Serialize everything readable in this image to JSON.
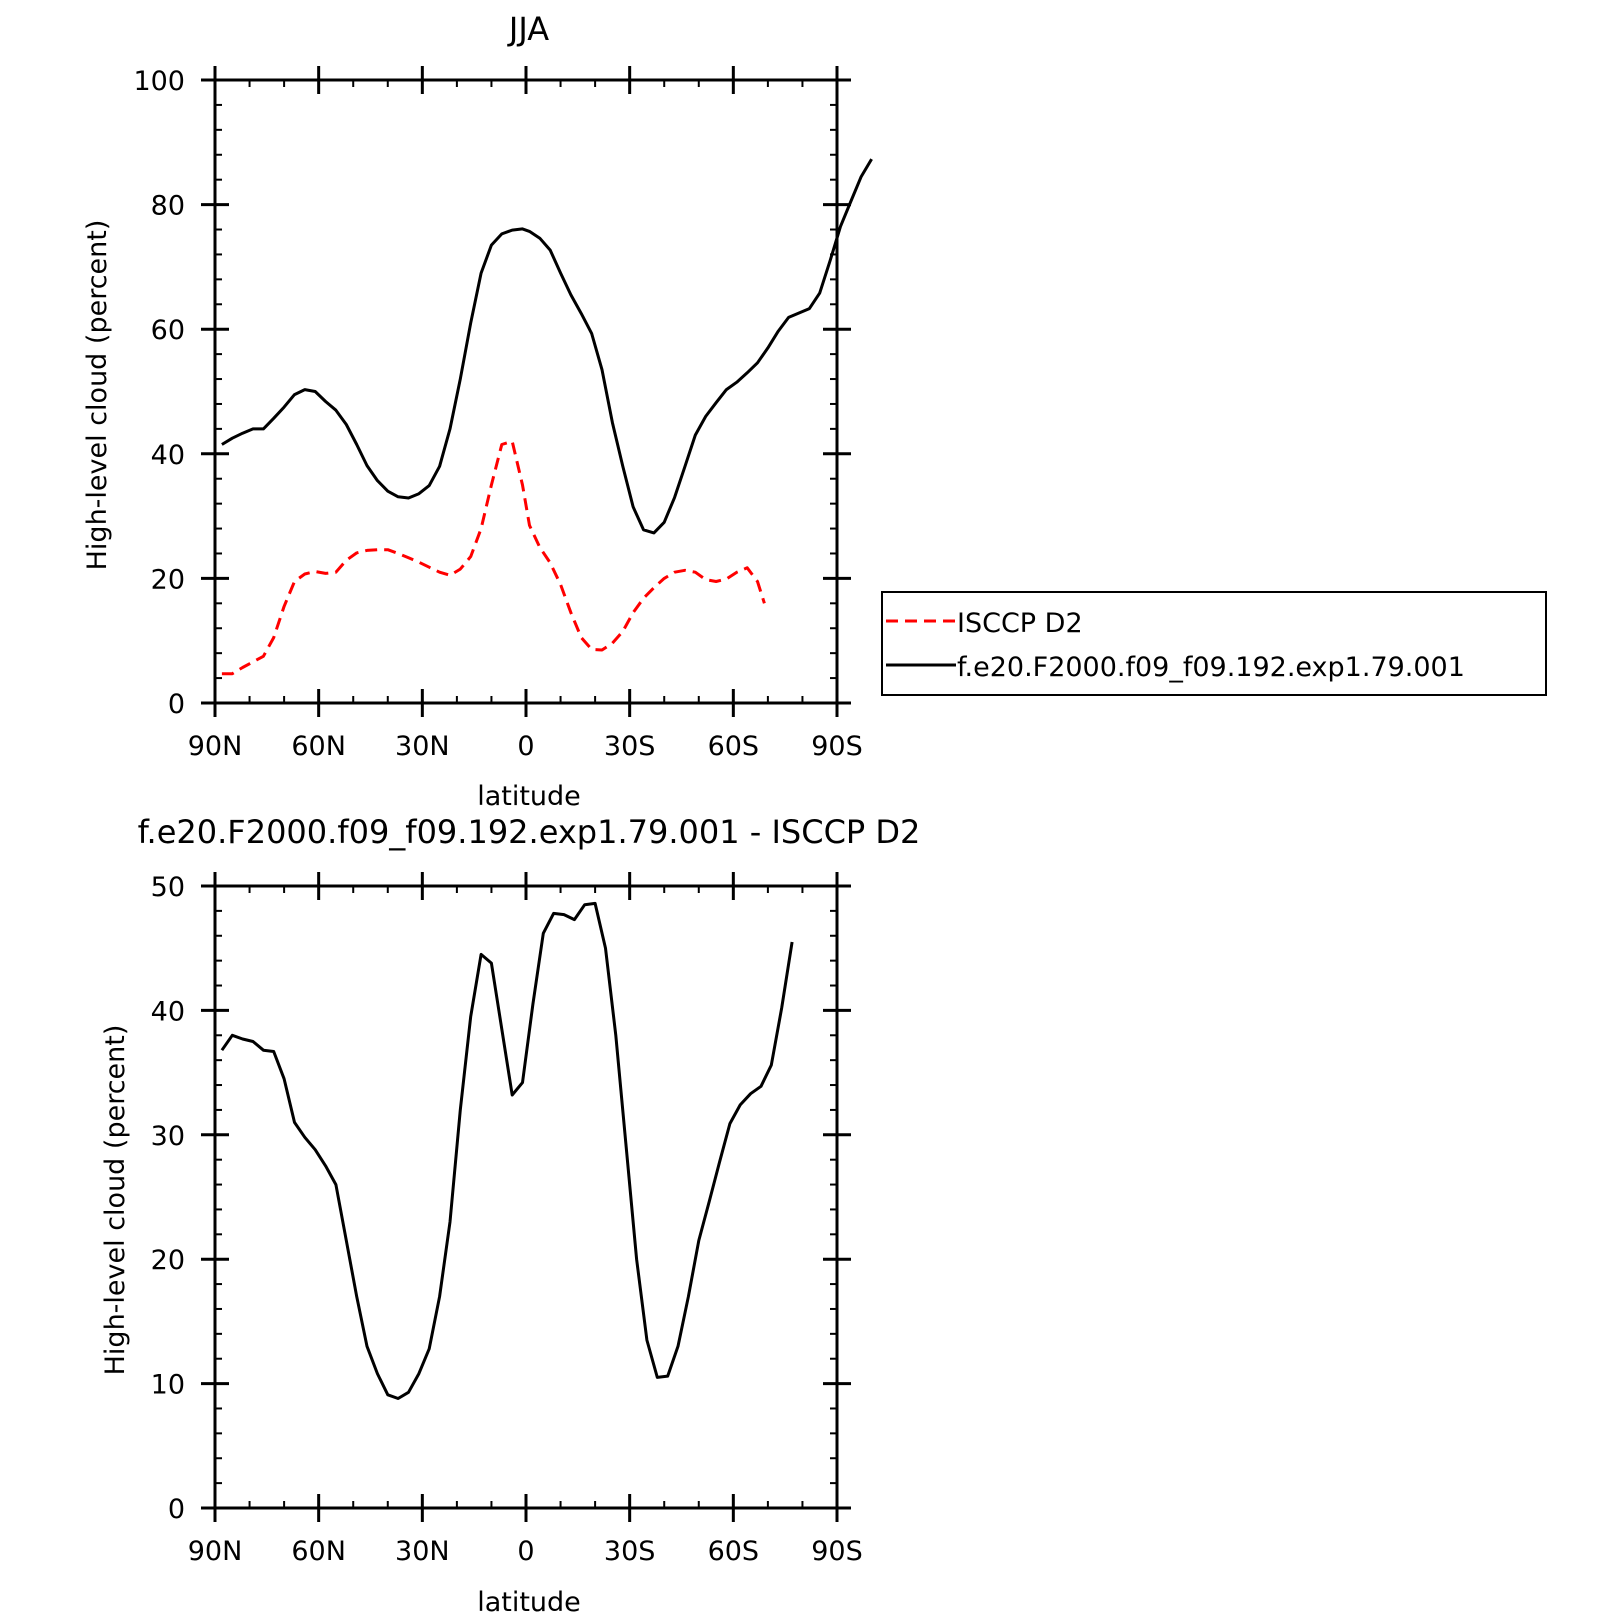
{
  "charts": [
    {
      "title": "JJA",
      "xlabel": "latitude",
      "ylabel": "High-level cloud (percent)"
    },
    {
      "title": "f.e20.F2000.f09_f09.192.exp1.79.001 - ISCCP D2",
      "xlabel": "latitude",
      "ylabel": "High-level cloud (percent)"
    }
  ],
  "legend": {
    "entries": [
      {
        "label": "ISCCP D2",
        "color": "#ff0000",
        "dash": "dashed"
      },
      {
        "label": "f.e20.F2000.f09_f09.192.exp1.79.001",
        "color": "#000000",
        "dash": "solid"
      }
    ]
  },
  "chart_data": [
    {
      "type": "line",
      "title": "JJA",
      "xlabel": "latitude",
      "ylabel": "High-level cloud (percent)",
      "xlim": [
        90,
        -90
      ],
      "ylim": [
        0,
        100
      ],
      "xticks": [
        90,
        60,
        30,
        0,
        -30,
        -60,
        -90
      ],
      "xtick_labels": [
        "90N",
        "60N",
        "30N",
        "0",
        "30S",
        "60S",
        "90S"
      ],
      "yticks": [
        0,
        20,
        40,
        60,
        80,
        100
      ],
      "ytick_labels": [
        "0",
        "20",
        "40",
        "60",
        "80",
        "100"
      ],
      "legend_position": "right",
      "series": [
        {
          "name": "ISCCP D2",
          "color": "#ff0000",
          "dash": "dashed",
          "points": [
            [
              88,
              4.7
            ],
            [
              85,
              4.7
            ],
            [
              82,
              5.7
            ],
            [
              79,
              6.6
            ],
            [
              76,
              7.5
            ],
            [
              73,
              10.5
            ],
            [
              70,
              15.5
            ],
            [
              67,
              19.5
            ],
            [
              64,
              20.7
            ],
            [
              61,
              21.1
            ],
            [
              58,
              20.8
            ],
            [
              55,
              21.0
            ],
            [
              52,
              22.9
            ],
            [
              49,
              24.1
            ],
            [
              46,
              24.5
            ],
            [
              43,
              24.6
            ],
            [
              40,
              24.6
            ],
            [
              37,
              24.0
            ],
            [
              34,
              23.3
            ],
            [
              31,
              22.6
            ],
            [
              28,
              21.8
            ],
            [
              25,
              21.0
            ],
            [
              22,
              20.5
            ],
            [
              19,
              21.5
            ],
            [
              16,
              23.5
            ],
            [
              13,
              28.0
            ],
            [
              10,
              35.0
            ],
            [
              7,
              41.5
            ],
            [
              4,
              42.0
            ],
            [
              1,
              35.0
            ],
            [
              -1,
              28.5
            ],
            [
              -4,
              25.0
            ],
            [
              -7,
              22.5
            ],
            [
              -10,
              19.0
            ],
            [
              -13,
              14.5
            ],
            [
              -16,
              10.5
            ],
            [
              -19,
              8.6
            ],
            [
              -22,
              8.5
            ],
            [
              -25,
              9.6
            ],
            [
              -28,
              11.5
            ],
            [
              -31,
              14.5
            ],
            [
              -34,
              16.8
            ],
            [
              -37,
              18.5
            ],
            [
              -40,
              20.0
            ],
            [
              -43,
              21.0
            ],
            [
              -46,
              21.3
            ],
            [
              -49,
              21.0
            ],
            [
              -52,
              19.8
            ],
            [
              -55,
              19.5
            ],
            [
              -58,
              19.9
            ],
            [
              -61,
              21.0
            ],
            [
              -64,
              21.7
            ],
            [
              -67,
              19.5
            ],
            [
              -69,
              16.0
            ]
          ]
        },
        {
          "name": "f.e20.F2000.f09_f09.192.exp1.79.001",
          "color": "#000000",
          "dash": "solid",
          "points": [
            [
              88,
              41.5
            ],
            [
              85,
              42.5
            ],
            [
              82,
              43.3
            ],
            [
              79,
              44.0
            ],
            [
              76,
              44.0
            ],
            [
              73,
              45.7
            ],
            [
              70,
              47.5
            ],
            [
              67,
              49.5
            ],
            [
              64,
              50.3
            ],
            [
              61,
              50.0
            ],
            [
              58,
              48.4
            ],
            [
              55,
              47.0
            ],
            [
              52,
              44.7
            ],
            [
              49,
              41.5
            ],
            [
              46,
              38.1
            ],
            [
              43,
              35.7
            ],
            [
              40,
              34.0
            ],
            [
              37,
              33.1
            ],
            [
              34,
              32.9
            ],
            [
              31,
              33.6
            ],
            [
              28,
              34.9
            ],
            [
              25,
              38.0
            ],
            [
              22,
              44.0
            ],
            [
              19,
              52.0
            ],
            [
              16,
              61.0
            ],
            [
              13,
              69.0
            ],
            [
              10,
              73.5
            ],
            [
              7,
              75.3
            ],
            [
              4,
              75.9
            ],
            [
              1,
              76.1
            ],
            [
              -1,
              75.7
            ],
            [
              -4,
              74.6
            ],
            [
              -7,
              72.7
            ],
            [
              -10,
              69.0
            ],
            [
              -13,
              65.5
            ],
            [
              -16,
              62.5
            ],
            [
              -19,
              59.3
            ],
            [
              -22,
              53.5
            ],
            [
              -25,
              45.0
            ],
            [
              -28,
              38.0
            ],
            [
              -31,
              31.5
            ],
            [
              -34,
              27.8
            ],
            [
              -37,
              27.3
            ],
            [
              -40,
              29.0
            ],
            [
              -43,
              33.0
            ],
            [
              -46,
              38.0
            ],
            [
              -49,
              43.0
            ],
            [
              -52,
              46.0
            ],
            [
              -55,
              48.2
            ],
            [
              -58,
              50.3
            ],
            [
              -61,
              51.5
            ],
            [
              -64,
              53.0
            ],
            [
              -67,
              54.6
            ],
            [
              -70,
              57.0
            ],
            [
              -73,
              59.7
            ],
            [
              -76,
              61.9
            ],
            [
              -79,
              62.6
            ],
            [
              -82,
              63.3
            ],
            [
              -85,
              65.8
            ],
            [
              -88,
              71.0
            ],
            [
              -91,
              76.5
            ],
            [
              -94,
              80.5
            ],
            [
              -97,
              84.5
            ],
            [
              -100,
              87.3
            ]
          ]
        }
      ]
    },
    {
      "type": "line",
      "title": "f.e20.F2000.f09_f09.192.exp1.79.001 - ISCCP D2",
      "xlabel": "latitude",
      "ylabel": "High-level cloud (percent)",
      "xlim": [
        90,
        -90
      ],
      "ylim": [
        0,
        50
      ],
      "xticks": [
        90,
        60,
        30,
        0,
        -30,
        -60,
        -90
      ],
      "xtick_labels": [
        "90N",
        "60N",
        "30N",
        "0",
        "30S",
        "60S",
        "90S"
      ],
      "yticks": [
        0,
        10,
        20,
        30,
        40,
        50
      ],
      "ytick_labels": [
        "0",
        "10",
        "20",
        "30",
        "40",
        "50"
      ],
      "series": [
        {
          "color": "#000000",
          "dash": "solid",
          "points": [
            [
              88,
              36.8
            ],
            [
              85,
              38.0
            ],
            [
              82,
              37.7
            ],
            [
              79,
              37.5
            ],
            [
              76,
              36.8
            ],
            [
              73,
              36.7
            ],
            [
              70,
              34.5
            ],
            [
              67,
              31.0
            ],
            [
              64,
              29.8
            ],
            [
              61,
              28.8
            ],
            [
              58,
              27.5
            ],
            [
              55,
              26.0
            ],
            [
              52,
              21.5
            ],
            [
              49,
              17.0
            ],
            [
              46,
              13.0
            ],
            [
              43,
              10.8
            ],
            [
              40,
              9.1
            ],
            [
              37,
              8.8
            ],
            [
              34,
              9.3
            ],
            [
              31,
              10.8
            ],
            [
              28,
              12.8
            ],
            [
              25,
              17.0
            ],
            [
              22,
              23.0
            ],
            [
              19,
              32.0
            ],
            [
              16,
              39.5
            ],
            [
              13,
              44.5
            ],
            [
              10,
              43.8
            ],
            [
              7,
              38.5
            ],
            [
              4,
              33.2
            ],
            [
              1,
              34.2
            ],
            [
              -2,
              40.5
            ],
            [
              -5,
              46.2
            ],
            [
              -8,
              47.8
            ],
            [
              -11,
              47.7
            ],
            [
              -14,
              47.3
            ],
            [
              -17,
              48.5
            ],
            [
              -20,
              48.6
            ],
            [
              -23,
              45.0
            ],
            [
              -26,
              38.0
            ],
            [
              -29,
              29.0
            ],
            [
              -32,
              20.0
            ],
            [
              -35,
              13.5
            ],
            [
              -38,
              10.5
            ],
            [
              -41,
              10.6
            ],
            [
              -44,
              13.0
            ],
            [
              -47,
              17.0
            ],
            [
              -50,
              21.5
            ],
            [
              -53,
              24.6
            ],
            [
              -56,
              27.8
            ],
            [
              -59,
              30.9
            ],
            [
              -62,
              32.4
            ],
            [
              -65,
              33.3
            ],
            [
              -68,
              33.9
            ],
            [
              -71,
              35.6
            ],
            [
              -74,
              40.2
            ],
            [
              -77,
              45.5
            ]
          ]
        }
      ]
    }
  ]
}
